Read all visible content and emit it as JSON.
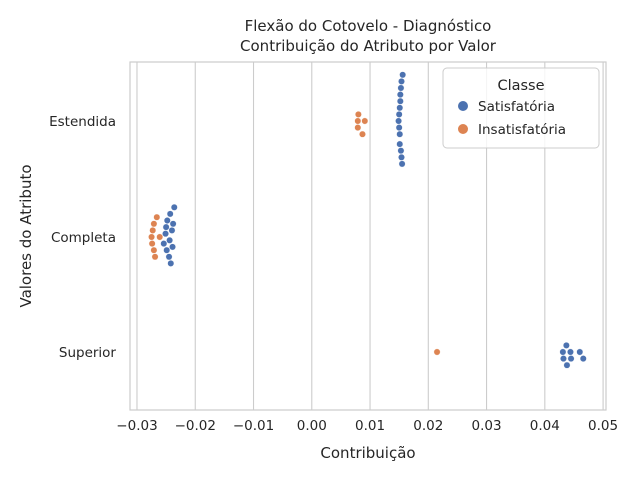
{
  "chart_data": {
    "type": "scatter",
    "subtype": "swarm",
    "title": "Flexão do Cotovelo - Diagnóstico",
    "subtitle": "Contribuição do Atributo por Valor",
    "xlabel": "Contribuição",
    "ylabel": "Valores do Atributo",
    "xlim": [
      -0.0312,
      0.0505
    ],
    "x_ticks": [
      -0.03,
      -0.02,
      -0.01,
      0.0,
      0.01,
      0.02,
      0.03,
      0.04,
      0.05
    ],
    "x_tick_labels": [
      "−0.03",
      "−0.02",
      "−0.01",
      "0.00",
      "0.01",
      "0.02",
      "0.03",
      "0.04",
      "0.05"
    ],
    "categories": [
      "Estendida",
      "Completa",
      "Superior"
    ],
    "grid": "vertical",
    "legend": {
      "title": "Classe",
      "position": "top-right",
      "entries": [
        "Satisfatória",
        "Insatisfatória"
      ]
    },
    "colors": {
      "Satisfatória": "#4c72b0",
      "Insatisfatória": "#dd8452"
    },
    "series": [
      {
        "name": "Satisfatória",
        "points": [
          [
            "Estendida",
            0.0156
          ],
          [
            "Estendida",
            0.0154
          ],
          [
            "Estendida",
            0.0153
          ],
          [
            "Estendida",
            0.0152
          ],
          [
            "Estendida",
            0.0151
          ],
          [
            "Estendida",
            0.015
          ],
          [
            "Estendida",
            0.0149
          ],
          [
            "Estendida",
            0.015
          ],
          [
            "Estendida",
            0.0151
          ],
          [
            "Estendida",
            0.0151
          ],
          [
            "Estendida",
            0.0152
          ],
          [
            "Estendida",
            0.0153
          ],
          [
            "Estendida",
            0.0154
          ],
          [
            "Estendida",
            0.0155
          ],
          [
            "Completa",
            -0.0238
          ],
          [
            "Completa",
            -0.024
          ],
          [
            "Completa",
            -0.0242
          ],
          [
            "Completa",
            -0.0248
          ],
          [
            "Completa",
            -0.0239
          ],
          [
            "Completa",
            -0.0249
          ],
          [
            "Completa",
            -0.0254
          ],
          [
            "Completa",
            -0.0245
          ],
          [
            "Completa",
            -0.0251
          ],
          [
            "Completa",
            -0.0244
          ],
          [
            "Completa",
            -0.025
          ],
          [
            "Completa",
            -0.0243
          ],
          [
            "Completa",
            -0.0236
          ],
          [
            "Superior",
            0.0432
          ],
          [
            "Superior",
            0.0445
          ],
          [
            "Superior",
            0.0466
          ],
          [
            "Superior",
            0.0431
          ],
          [
            "Superior",
            0.0444
          ],
          [
            "Superior",
            0.046
          ],
          [
            "Superior",
            0.0438
          ],
          [
            "Superior",
            0.0437
          ]
        ]
      },
      {
        "name": "Insatisfatória",
        "points": [
          [
            "Estendida",
            0.0087
          ],
          [
            "Estendida",
            0.0079
          ],
          [
            "Estendida",
            0.0079
          ],
          [
            "Estendida",
            0.0091
          ],
          [
            "Estendida",
            0.008
          ],
          [
            "Completa",
            -0.0266
          ],
          [
            "Completa",
            -0.0271
          ],
          [
            "Completa",
            -0.0273
          ],
          [
            "Completa",
            -0.0274
          ],
          [
            "Completa",
            -0.0261
          ],
          [
            "Completa",
            -0.0275
          ],
          [
            "Completa",
            -0.0271
          ],
          [
            "Completa",
            -0.0269
          ],
          [
            "Superior",
            0.0215
          ]
        ]
      }
    ]
  }
}
